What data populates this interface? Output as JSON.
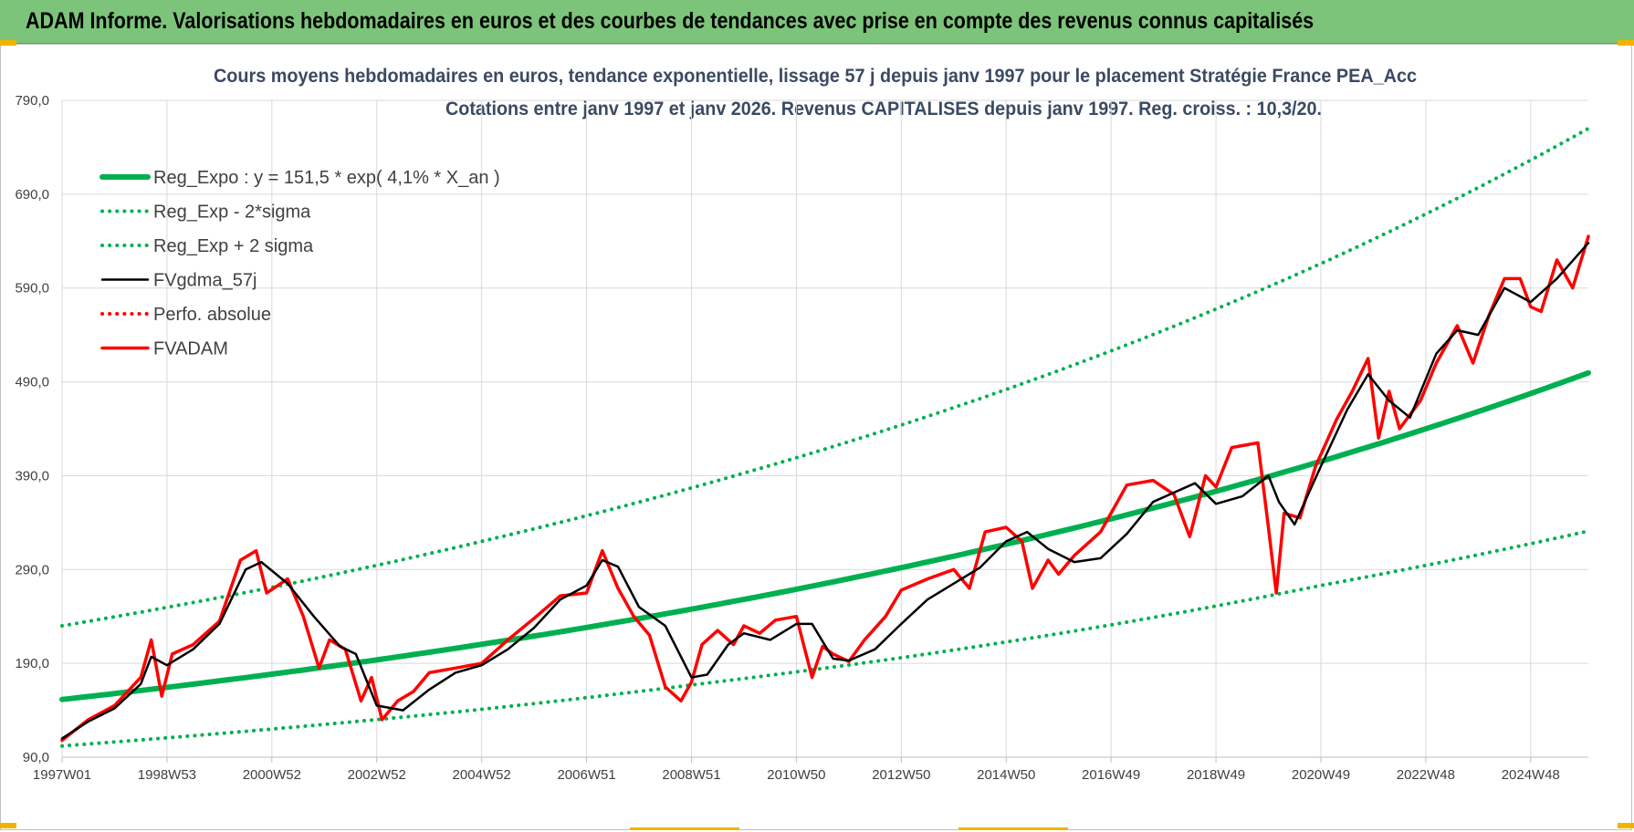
{
  "header": {
    "banner": "ADAM Informe. Valorisations hebdomadaires en euros et des courbes de tendances avec prise en compte des revenus connus capitalisés"
  },
  "colors": {
    "banner_bg": "#7cc47a",
    "green": "#00b050",
    "red": "#ff0000",
    "black": "#000000",
    "grid": "#d9d9d9",
    "title": "#3b4a63"
  },
  "chart_data": {
    "type": "line",
    "title_lines": [
      "Cours moyens hebdomadaires en euros, tendance exponentielle, lissage 57 j depuis janv 1997  pour le placement Stratégie France PEA_Acc",
      "Cotations entre janv 1997 et janv 2026. Revenus CAPITALISES depuis janv 1997. Reg. croiss. : 10,3/20."
    ],
    "xlabel": "",
    "ylabel": "",
    "ylim": [
      90,
      790
    ],
    "yticks": [
      "790,0",
      "690,0",
      "590,0",
      "490,0",
      "390,0",
      "290,0",
      "190,0",
      "90,0"
    ],
    "xlim": [
      1997.0,
      2026.1
    ],
    "xticks": [
      {
        "x": 1997.0,
        "label": "1997W01"
      },
      {
        "x": 1999.0,
        "label": "1998W53"
      },
      {
        "x": 2001.0,
        "label": "2000W52"
      },
      {
        "x": 2003.0,
        "label": "2002W52"
      },
      {
        "x": 2005.0,
        "label": "2004W52"
      },
      {
        "x": 2007.0,
        "label": "2006W51"
      },
      {
        "x": 2009.0,
        "label": "2008W51"
      },
      {
        "x": 2011.0,
        "label": "2010W50"
      },
      {
        "x": 2013.0,
        "label": "2012W50"
      },
      {
        "x": 2015.0,
        "label": "2014W50"
      },
      {
        "x": 2017.0,
        "label": "2016W49"
      },
      {
        "x": 2019.0,
        "label": "2018W49"
      },
      {
        "x": 2021.0,
        "label": "2020W49"
      },
      {
        "x": 2023.0,
        "label": "2022W48"
      },
      {
        "x": 2025.0,
        "label": "2024W48"
      }
    ],
    "grid": true,
    "legend_position": "top-left",
    "series": [
      {
        "name": "Reg_Expo : y = 151,5 * exp( 4,1% *  X_an )",
        "style": "solid-thick",
        "color": "#00b050",
        "x": [
          1997.0,
          2001.0,
          2005.0,
          2009.0,
          2013.0,
          2017.0,
          2021.0,
          2026.1
        ],
        "values": [
          151.5,
          178.5,
          210.3,
          247.8,
          292.0,
          344.0,
          405.3,
          499.6
        ]
      },
      {
        "name": "Reg_Exp - 2*sigma",
        "style": "dotted",
        "color": "#00b050",
        "x": [
          1997.0,
          2001.0,
          2005.0,
          2009.0,
          2013.0,
          2017.0,
          2021.0,
          2026.1
        ],
        "values": [
          102,
          120,
          141,
          167,
          196,
          231,
          273,
          331
        ]
      },
      {
        "name": "Reg_Exp + 2 sigma",
        "style": "dotted",
        "color": "#00b050",
        "x": [
          1997.0,
          2001.0,
          2005.0,
          2009.0,
          2013.0,
          2017.0,
          2021.0,
          2026.1
        ],
        "values": [
          230,
          271,
          320,
          377,
          444,
          523,
          616,
          760
        ]
      },
      {
        "name": "FVgdma_57j",
        "style": "solid",
        "color": "#000000",
        "x": [
          1997.0,
          1997.5,
          1998.0,
          1998.5,
          1998.7,
          1999.0,
          1999.5,
          2000.0,
          2000.5,
          2000.8,
          2001.3,
          2001.8,
          2002.3,
          2002.6,
          2003.0,
          2003.5,
          2004.0,
          2004.5,
          2005.0,
          2005.5,
          2006.0,
          2006.5,
          2007.0,
          2007.3,
          2007.6,
          2008.0,
          2008.5,
          2009.0,
          2009.3,
          2009.7,
          2010.0,
          2010.5,
          2011.0,
          2011.3,
          2011.7,
          2012.0,
          2012.5,
          2013.0,
          2013.5,
          2014.0,
          2014.5,
          2015.0,
          2015.4,
          2015.8,
          2016.3,
          2016.8,
          2017.3,
          2017.8,
          2018.2,
          2018.6,
          2019.0,
          2019.5,
          2020.0,
          2020.2,
          2020.5,
          2021.0,
          2021.5,
          2021.9,
          2022.3,
          2022.7,
          2023.2,
          2023.6,
          2024.0,
          2024.5,
          2025.0,
          2025.5,
          2026.1
        ],
        "values": [
          110,
          128,
          142,
          168,
          197,
          188,
          205,
          232,
          290,
          298,
          275,
          240,
          208,
          200,
          145,
          140,
          162,
          180,
          188,
          205,
          228,
          258,
          273,
          300,
          293,
          250,
          230,
          175,
          178,
          210,
          222,
          215,
          232,
          232,
          195,
          193,
          205,
          232,
          258,
          275,
          292,
          320,
          330,
          312,
          298,
          302,
          328,
          362,
          372,
          382,
          360,
          368,
          390,
          362,
          338,
          400,
          460,
          498,
          470,
          452,
          520,
          545,
          540,
          590,
          575,
          600,
          638
        ]
      },
      {
        "name": "Perfo. absolue",
        "style": "dotted",
        "color": "#ff0000",
        "x": [],
        "values": []
      },
      {
        "name": "FVADAM",
        "style": "solid-thick",
        "color": "#ff0000",
        "x": [
          1997.0,
          1997.5,
          1998.0,
          1998.5,
          1998.7,
          1998.9,
          1999.1,
          1999.5,
          2000.0,
          2000.4,
          2000.7,
          2000.9,
          2001.3,
          2001.6,
          2001.9,
          2002.1,
          2002.4,
          2002.7,
          2002.9,
          2003.1,
          2003.4,
          2003.7,
          2004.0,
          2004.5,
          2005.0,
          2005.5,
          2006.0,
          2006.5,
          2007.0,
          2007.3,
          2007.6,
          2007.9,
          2008.2,
          2008.5,
          2008.8,
          2009.0,
          2009.2,
          2009.5,
          2009.8,
          2010.0,
          2010.3,
          2010.6,
          2011.0,
          2011.3,
          2011.5,
          2011.7,
          2012.0,
          2012.3,
          2012.7,
          2013.0,
          2013.5,
          2014.0,
          2014.3,
          2014.6,
          2015.0,
          2015.3,
          2015.5,
          2015.8,
          2016.0,
          2016.3,
          2016.8,
          2017.3,
          2017.8,
          2018.2,
          2018.5,
          2018.8,
          2019.0,
          2019.3,
          2019.8,
          2020.0,
          2020.15,
          2020.3,
          2020.6,
          2020.9,
          2021.3,
          2021.6,
          2021.9,
          2022.1,
          2022.3,
          2022.5,
          2022.7,
          2022.9,
          2023.2,
          2023.6,
          2023.9,
          2024.2,
          2024.5,
          2024.8,
          2025.0,
          2025.2,
          2025.5,
          2025.8,
          2026.1
        ],
        "values": [
          108,
          130,
          145,
          175,
          215,
          155,
          200,
          210,
          235,
          300,
          310,
          265,
          280,
          240,
          185,
          215,
          205,
          150,
          175,
          130,
          150,
          160,
          180,
          185,
          190,
          215,
          238,
          262,
          265,
          310,
          270,
          240,
          220,
          165,
          150,
          170,
          210,
          225,
          210,
          230,
          222,
          236,
          240,
          175,
          208,
          200,
          192,
          215,
          240,
          268,
          280,
          290,
          270,
          330,
          335,
          320,
          270,
          300,
          285,
          305,
          330,
          380,
          385,
          370,
          325,
          390,
          378,
          420,
          425,
          335,
          265,
          350,
          345,
          400,
          450,
          480,
          515,
          430,
          480,
          440,
          455,
          470,
          510,
          550,
          510,
          560,
          600,
          600,
          570,
          565,
          620,
          590,
          645
        ]
      }
    ]
  }
}
